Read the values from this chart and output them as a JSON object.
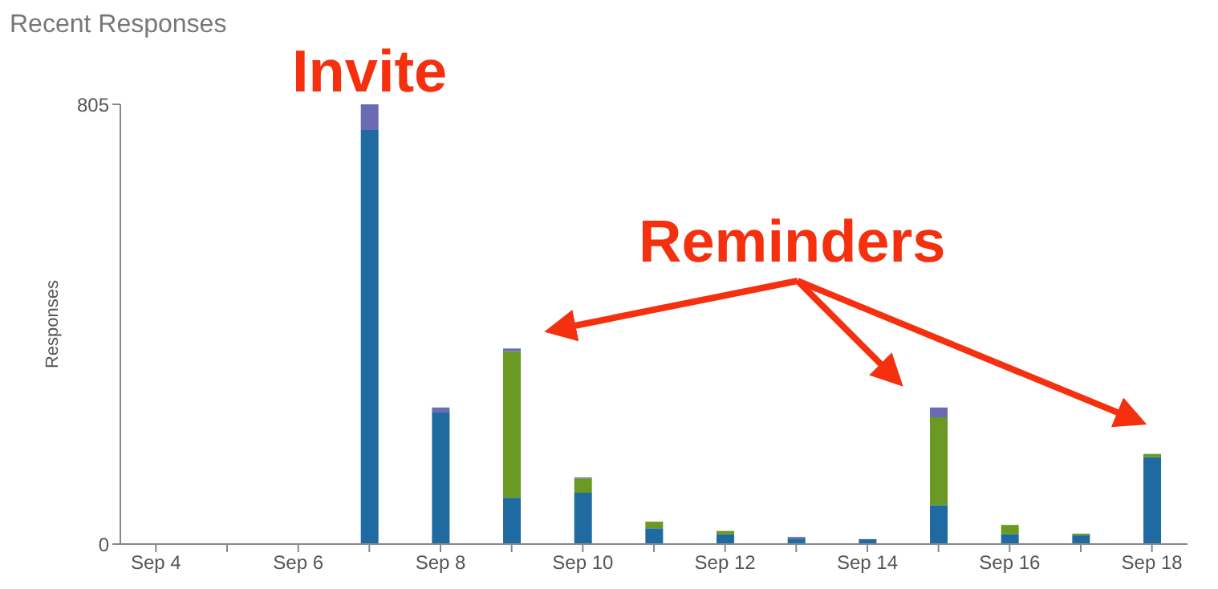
{
  "chart_data": {
    "type": "bar",
    "title": "Recent Responses",
    "ylabel": "Responses",
    "stacked": true,
    "categories": [
      "Sep 4",
      null,
      "Sep 6",
      null,
      "Sep 8",
      null,
      "Sep 10",
      null,
      "Sep 12",
      null,
      "Sep 14",
      null,
      "Sep 16",
      null,
      "Sep 18"
    ],
    "series": [
      {
        "color": "#1f6aa0",
        "values": [
          0,
          0,
          0,
          758,
          241,
          85,
          94,
          29,
          18,
          10,
          9,
          71,
          18,
          16,
          159
        ]
      },
      {
        "color": "#6a9a23",
        "values": [
          0,
          0,
          0,
          0,
          0,
          268,
          26,
          12,
          6,
          0,
          0,
          161,
          17,
          3,
          6
        ]
      },
      {
        "color": "#6b6bb5",
        "values": [
          0,
          0,
          0,
          47,
          9,
          5,
          2,
          0,
          0,
          3,
          0,
          18,
          0,
          0,
          0
        ]
      }
    ],
    "ylim": [
      0,
      805
    ],
    "yticks": [
      0,
      805
    ],
    "grid": false,
    "annotations": [
      "Invite",
      "Reminders"
    ]
  }
}
